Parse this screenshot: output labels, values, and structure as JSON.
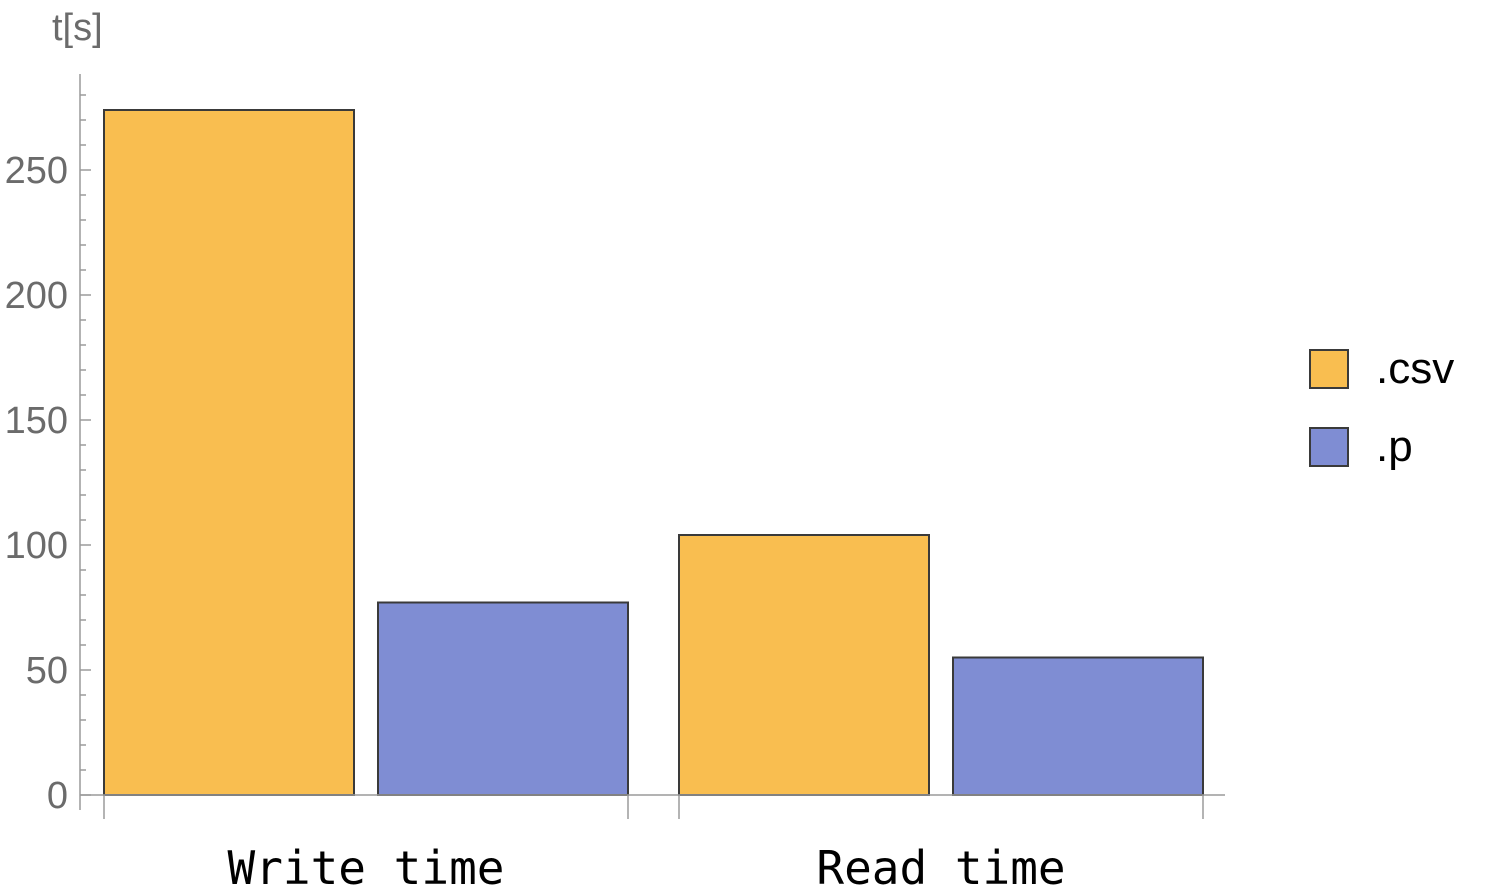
{
  "chart_data": {
    "type": "bar",
    "ylabel": "t[s]",
    "xlabel": "",
    "categories": [
      "Write time",
      "Read time"
    ],
    "series": [
      {
        "name": ".csv",
        "color": "#F9BE50",
        "values": [
          274,
          104
        ]
      },
      {
        "name": ".p",
        "color": "#7F8DD3",
        "values": [
          77,
          55
        ]
      }
    ],
    "ylim": [
      0,
      285
    ],
    "yticks": [
      0,
      50,
      100,
      150,
      200,
      250
    ],
    "yticks_text": [
      "0",
      "50",
      "100",
      "150",
      "200",
      "250"
    ],
    "legend_position": "right",
    "grid": false
  }
}
